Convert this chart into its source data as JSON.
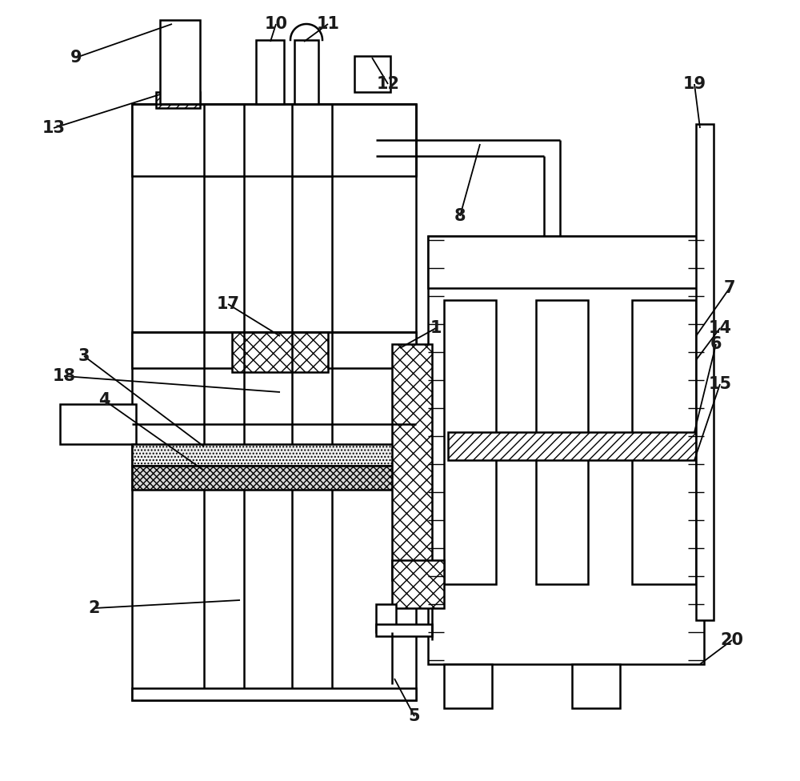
{
  "bg": "#ffffff",
  "lc": "#000000",
  "lw": 1.8,
  "figw": 10.0,
  "figh": 9.76,
  "note_color": "#1a1a1a",
  "note_fs": 15
}
